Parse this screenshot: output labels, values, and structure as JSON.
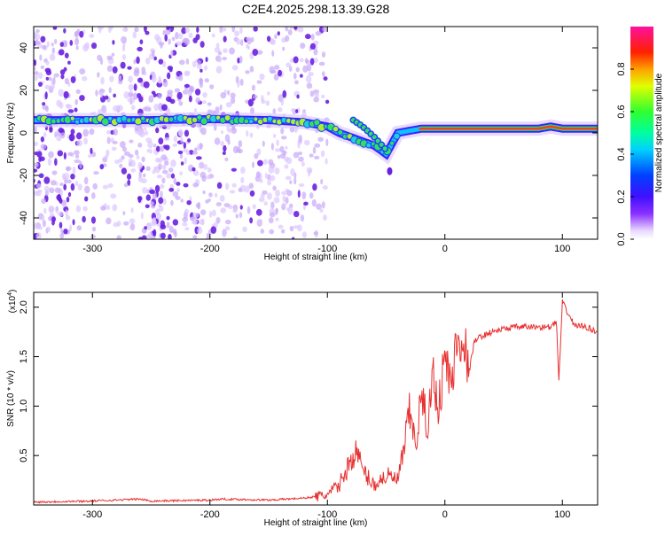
{
  "title": "C2E4.2025.298.13.39.G28",
  "colors": {
    "snr_line": "#e83030",
    "strong_band": "#ff3a1a",
    "mid_band": "#30e050",
    "weak_points": "#6a20e0"
  },
  "chart_data": [
    {
      "type": "heatmap",
      "xlabel": "Height of straight line (km)",
      "ylabel": "Frequency (Hz)",
      "xlim": [
        -350,
        130
      ],
      "ylim": [
        -50,
        50
      ],
      "xticks": [
        -300,
        -200,
        -100,
        0,
        100
      ],
      "yticks": [
        -40,
        -20,
        0,
        20,
        40
      ],
      "colorbar": {
        "label": "Normalized spectral amplitude",
        "range": [
          0,
          1
        ],
        "ticks": [
          0.0,
          0.2,
          0.4,
          0.6,
          0.8
        ]
      },
      "ridge": {
        "x": [
          -350,
          -300,
          -250,
          -200,
          -150,
          -120,
          -100,
          -90,
          -80,
          -70,
          -60,
          -55,
          -50,
          -45,
          -40,
          -30,
          -20,
          0,
          20,
          60,
          80,
          90,
          100,
          130
        ],
        "y": [
          6,
          6,
          6,
          6.5,
          6,
          5,
          3,
          0,
          -2,
          -4,
          -6,
          -8,
          -10,
          -5,
          0,
          1,
          2,
          2,
          2,
          2,
          2,
          3,
          2,
          2
        ]
      },
      "side_branch": {
        "x": [
          -78,
          -70,
          -60,
          -50
        ],
        "y": [
          6,
          3,
          -2,
          -8
        ]
      }
    },
    {
      "type": "line",
      "xlabel": "Height of straight line (km)",
      "ylabel": "SNR (10 * v/v)",
      "scale_label": "(x10",
      "scale_exponent": "4",
      "xlim": [
        -350,
        130
      ],
      "ylim": [
        0,
        2.15
      ],
      "xticks": [
        -300,
        -200,
        -100,
        0,
        100
      ],
      "yticks": [
        0.5,
        1.0,
        1.5,
        2.0
      ],
      "series": [
        {
          "x": [
            -350,
            -300,
            -260,
            -250,
            -200,
            -190,
            -150,
            -120,
            -100,
            -90,
            -80,
            -75,
            -70,
            -60,
            -50,
            -40,
            -35,
            -30,
            -25,
            -20,
            -15,
            -10,
            -5,
            0,
            5,
            10,
            15,
            20,
            25,
            30,
            40,
            50,
            60,
            70,
            80,
            90,
            95,
            97,
            100,
            110,
            120,
            130
          ],
          "y": [
            0.03,
            0.04,
            0.06,
            0.04,
            0.05,
            0.06,
            0.05,
            0.07,
            0.1,
            0.2,
            0.45,
            0.55,
            0.35,
            0.2,
            0.3,
            0.25,
            0.55,
            0.95,
            0.6,
            1.1,
            0.8,
            1.3,
            1.0,
            1.5,
            1.2,
            1.6,
            1.8,
            1.3,
            1.65,
            1.7,
            1.75,
            1.78,
            1.8,
            1.8,
            1.8,
            1.8,
            1.85,
            1.25,
            2.05,
            1.82,
            1.8,
            1.75
          ]
        }
      ]
    }
  ]
}
